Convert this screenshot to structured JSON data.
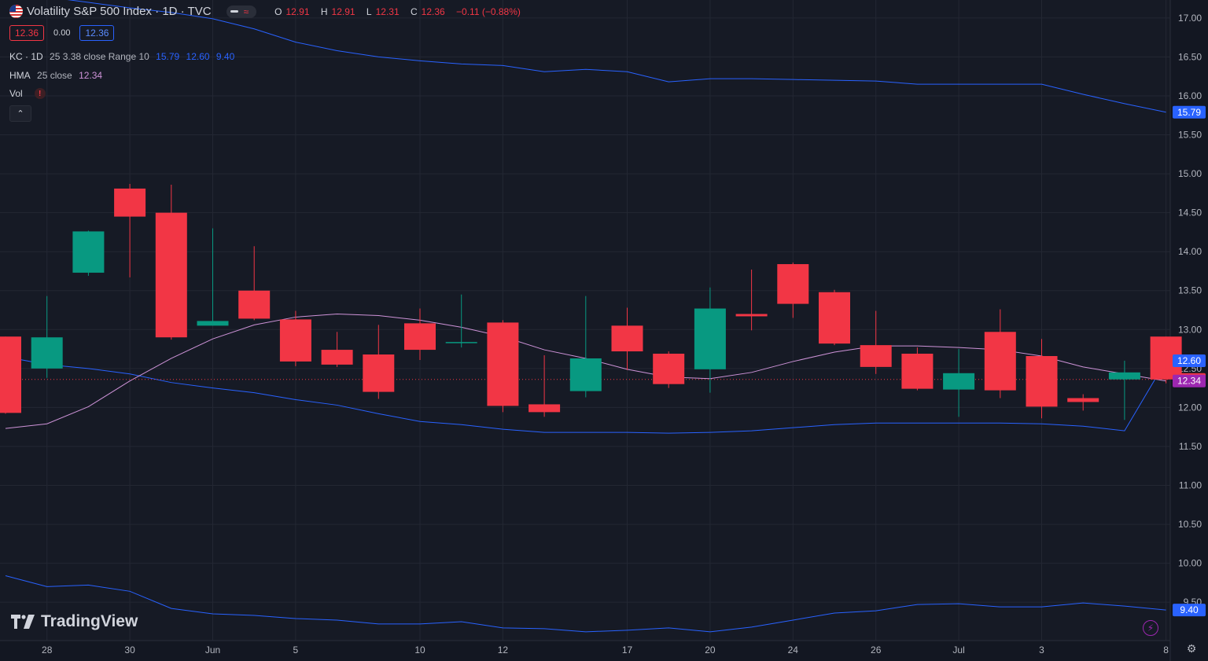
{
  "header": {
    "title": "Volatility S&P 500 Index · 1D · TVC",
    "ohlc": [
      {
        "key": "O",
        "value": "12.91"
      },
      {
        "key": "H",
        "value": "12.91"
      },
      {
        "key": "L",
        "value": "12.31"
      },
      {
        "key": "C",
        "value": "12.36"
      }
    ],
    "change": "−0.11 (−0.88%)",
    "sell_price": "12.36",
    "spread": "0.00",
    "buy_price": "12.36"
  },
  "indicators": {
    "kc": {
      "name": "KC · 1D",
      "params": "25 3.38 close Range 10",
      "upper": "15.79",
      "middle": "12.60",
      "lower": "9.40"
    },
    "hma": {
      "name": "HMA",
      "params": "25 close",
      "value": "12.34"
    },
    "vol": {
      "name": "Vol",
      "warning_icon": "!"
    }
  },
  "controls": {
    "collapse_icon": "⌃"
  },
  "branding": {
    "logo_text": "TradingView"
  },
  "colors": {
    "background": "#131722",
    "up": "#089981",
    "down": "#f23645",
    "kc": "#2962ff",
    "hma": "#ce93d8",
    "axis_text": "#b2b5be"
  },
  "chart_data": {
    "type": "candlestick",
    "ylim": [
      9.3,
      17.15
    ],
    "y_ticks": [
      "9.50",
      "10.00",
      "10.50",
      "11.00",
      "11.50",
      "12.00",
      "12.50",
      "13.00",
      "13.50",
      "14.00",
      "14.50",
      "15.00",
      "15.50",
      "16.00",
      "16.50",
      "17.00"
    ],
    "x_tick_labels": [
      "28",
      "30",
      "Jun",
      "5",
      "10",
      "12",
      "17",
      "20",
      "24",
      "26",
      "Jul",
      "3",
      "8"
    ],
    "x_tick_index": [
      1,
      3,
      5,
      7,
      10,
      12,
      15,
      17,
      19,
      21,
      23,
      25,
      28
    ],
    "candles": [
      {
        "date": "May 24",
        "o": 12.91,
        "h": 12.91,
        "l": 11.92,
        "c": 11.93
      },
      {
        "date": "May 28",
        "o": 12.5,
        "h": 13.43,
        "l": 12.38,
        "c": 12.9
      },
      {
        "date": "May 29",
        "o": 13.73,
        "h": 14.27,
        "l": 13.69,
        "c": 14.26
      },
      {
        "date": "May 30",
        "o": 14.81,
        "h": 14.87,
        "l": 13.67,
        "c": 14.45
      },
      {
        "date": "May 31",
        "o": 14.5,
        "h": 14.86,
        "l": 12.87,
        "c": 12.9
      },
      {
        "date": "Jun 3",
        "o": 13.05,
        "h": 14.3,
        "l": 13.05,
        "c": 13.11
      },
      {
        "date": "Jun 4",
        "o": 13.5,
        "h": 14.07,
        "l": 13.12,
        "c": 13.14
      },
      {
        "date": "Jun 5",
        "o": 13.13,
        "h": 13.24,
        "l": 12.53,
        "c": 12.59
      },
      {
        "date": "Jun 6",
        "o": 12.74,
        "h": 12.97,
        "l": 12.52,
        "c": 12.55
      },
      {
        "date": "Jun 7",
        "o": 12.68,
        "h": 13.06,
        "l": 12.11,
        "c": 12.2
      },
      {
        "date": "Jun 10",
        "o": 13.08,
        "h": 13.27,
        "l": 12.61,
        "c": 12.74
      },
      {
        "date": "Jun 11",
        "o": 12.84,
        "h": 13.45,
        "l": 12.77,
        "c": 12.84
      },
      {
        "date": "Jun 12",
        "o": 13.09,
        "h": 13.12,
        "l": 11.94,
        "c": 12.02
      },
      {
        "date": "Jun 13",
        "o": 12.04,
        "h": 12.67,
        "l": 11.88,
        "c": 11.94
      },
      {
        "date": "Jun 14",
        "o": 12.21,
        "h": 13.43,
        "l": 12.13,
        "c": 12.63
      },
      {
        "date": "Jun 17",
        "o": 13.05,
        "h": 13.28,
        "l": 12.48,
        "c": 12.72
      },
      {
        "date": "Jun 18",
        "o": 12.69,
        "h": 12.72,
        "l": 12.25,
        "c": 12.3
      },
      {
        "date": "Jun 20",
        "o": 12.49,
        "h": 13.54,
        "l": 12.19,
        "c": 13.27
      },
      {
        "date": "Jun 21",
        "o": 13.2,
        "h": 13.77,
        "l": 12.99,
        "c": 13.17
      },
      {
        "date": "Jun 24",
        "o": 13.84,
        "h": 13.86,
        "l": 13.15,
        "c": 13.33
      },
      {
        "date": "Jun 25",
        "o": 13.48,
        "h": 13.51,
        "l": 12.8,
        "c": 12.82
      },
      {
        "date": "Jun 26",
        "o": 12.8,
        "h": 13.24,
        "l": 12.43,
        "c": 12.52
      },
      {
        "date": "Jun 27",
        "o": 12.69,
        "h": 12.77,
        "l": 12.22,
        "c": 12.24
      },
      {
        "date": "Jun 28",
        "o": 12.23,
        "h": 12.75,
        "l": 11.88,
        "c": 12.44
      },
      {
        "date": "Jul 1",
        "o": 12.97,
        "h": 13.26,
        "l": 12.12,
        "c": 12.22
      },
      {
        "date": "Jul 2",
        "o": 12.66,
        "h": 12.88,
        "l": 11.86,
        "c": 12.01
      },
      {
        "date": "Jul 3",
        "o": 12.12,
        "h": 12.17,
        "l": 11.96,
        "c": 12.07
      },
      {
        "date": "Jul 5",
        "o": 12.36,
        "h": 12.6,
        "l": 11.84,
        "c": 12.45
      },
      {
        "date": "Jul 8",
        "o": 12.91,
        "h": 12.91,
        "l": 12.31,
        "c": 12.36
      }
    ],
    "series": [
      {
        "name": "KC · 1D",
        "color": "#2962ff",
        "upper": [
          17.35,
          17.27,
          17.2,
          17.13,
          17.07,
          16.99,
          16.86,
          16.69,
          16.58,
          16.5,
          16.45,
          16.41,
          16.39,
          16.31,
          16.34,
          16.31,
          16.18,
          16.22,
          16.22,
          16.21,
          16.2,
          16.19,
          16.15,
          16.15,
          16.15,
          16.15,
          16.02,
          15.9,
          15.79
        ],
        "middle": [
          12.65,
          12.55,
          12.5,
          12.43,
          12.32,
          12.25,
          12.19,
          12.1,
          12.03,
          11.92,
          11.82,
          11.78,
          11.72,
          11.68,
          11.68,
          11.68,
          11.67,
          11.68,
          11.7,
          11.74,
          11.78,
          11.8,
          11.8,
          11.8,
          11.8,
          11.79,
          11.76,
          11.7,
          12.6
        ],
        "lower": [
          9.84,
          9.7,
          9.72,
          9.64,
          9.42,
          9.35,
          9.33,
          9.29,
          9.27,
          9.22,
          9.22,
          9.25,
          9.17,
          9.16,
          9.12,
          9.14,
          9.17,
          9.12,
          9.18,
          9.27,
          9.36,
          9.39,
          9.47,
          9.48,
          9.44,
          9.44,
          9.49,
          9.45,
          9.4
        ]
      },
      {
        "name": "HMA",
        "color": "#ce93d8",
        "values": [
          11.73,
          11.79,
          12.01,
          12.34,
          12.63,
          12.88,
          13.06,
          13.16,
          13.2,
          13.18,
          13.12,
          13.03,
          12.91,
          12.74,
          12.63,
          12.49,
          12.39,
          12.37,
          12.45,
          12.59,
          12.71,
          12.79,
          12.79,
          12.77,
          12.74,
          12.66,
          12.52,
          12.43,
          12.34
        ]
      }
    ],
    "last_labels": [
      {
        "label": "15.79",
        "value": 15.79,
        "color": "#2962ff"
      },
      {
        "label": "12.60",
        "value": 12.6,
        "color": "#2962ff"
      },
      {
        "label": "12.36",
        "value": 12.36,
        "color": "#f23645"
      },
      {
        "label": "12.34",
        "value": 12.34,
        "color": "#9c27b0"
      },
      {
        "label": "9.40",
        "value": 9.4,
        "color": "#2962ff"
      }
    ]
  }
}
